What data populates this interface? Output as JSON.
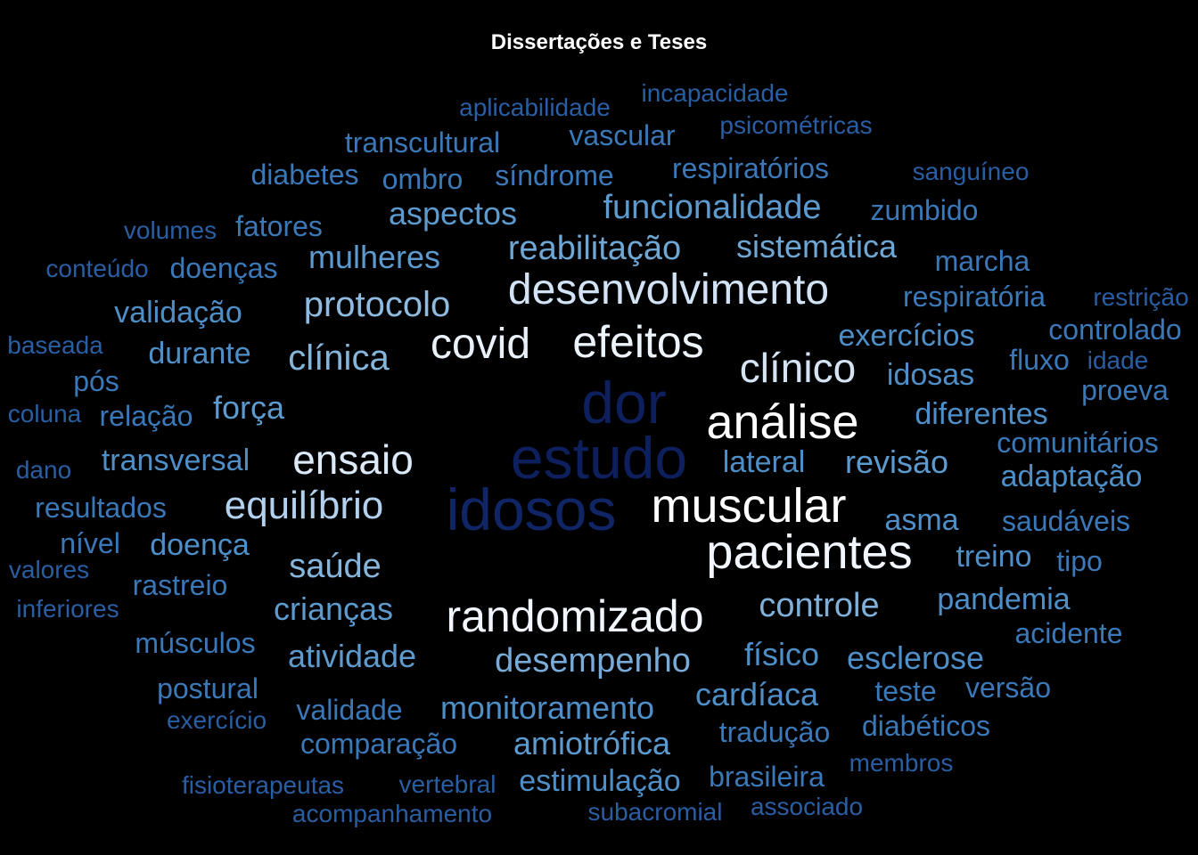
{
  "title": "Dissertações e Teses",
  "words": [
    {
      "text": "dor",
      "color": "#0e1f5e"
    },
    {
      "text": "estudo",
      "color": "#0e1f5e"
    },
    {
      "text": "idosos",
      "color": "#102566"
    },
    {
      "text": "análise",
      "color": "#ffffff"
    },
    {
      "text": "muscular",
      "color": "#ffffff"
    },
    {
      "text": "pacientes",
      "color": "#f1f6ff"
    },
    {
      "text": "randomizado",
      "color": "#f1f6ff"
    },
    {
      "text": "efeitos",
      "color": "#eef4fc"
    },
    {
      "text": "desenvolvimento",
      "color": "#d2e3f5"
    },
    {
      "text": "covid",
      "color": "#e8f0fa"
    },
    {
      "text": "clínico",
      "color": "#d4e4f5"
    },
    {
      "text": "ensaio",
      "color": "#dbe9f8"
    },
    {
      "text": "equilíbrio",
      "color": "#b3d1ee"
    },
    {
      "text": "protocolo",
      "color": "#8fbbe0"
    },
    {
      "text": "clínica",
      "color": "#86b5dc"
    },
    {
      "text": "saúde",
      "color": "#86b5dc"
    },
    {
      "text": "controle",
      "color": "#7eb0da"
    },
    {
      "text": "desempenho",
      "color": "#78abd7"
    },
    {
      "text": "reabilitação",
      "color": "#6ea6d4"
    },
    {
      "text": "sistemática",
      "color": "#6ea6d4"
    },
    {
      "text": "funcionalidade",
      "color": "#5d9ace"
    },
    {
      "text": "aspectos",
      "color": "#5d9ace"
    },
    {
      "text": "mulheres",
      "color": "#5d9ace"
    },
    {
      "text": "amiotrófica",
      "color": "#5d9ace"
    },
    {
      "text": "revisão",
      "color": "#5d9ace"
    },
    {
      "text": "força",
      "color": "#5d9ace"
    },
    {
      "text": "crianças",
      "color": "#5d9ace"
    },
    {
      "text": "atividade",
      "color": "#5d9ace"
    },
    {
      "text": "monitoramento",
      "color": "#4f8fc8"
    },
    {
      "text": "cardíaca",
      "color": "#4f8fc8"
    },
    {
      "text": "físico",
      "color": "#4f8fc8"
    },
    {
      "text": "esclerose",
      "color": "#4f8fc8"
    },
    {
      "text": "exercícios",
      "color": "#4f8fc8"
    },
    {
      "text": "diferentes",
      "color": "#4f8fc8"
    },
    {
      "text": "lateral",
      "color": "#4f8fc8"
    },
    {
      "text": "adaptação",
      "color": "#4f8fc8"
    },
    {
      "text": "pandemia",
      "color": "#4f8fc8"
    },
    {
      "text": "validação",
      "color": "#4f8fc8"
    },
    {
      "text": "durante",
      "color": "#4f8fc8"
    },
    {
      "text": "idosas",
      "color": "#4f8fc8"
    },
    {
      "text": "asma",
      "color": "#4f8fc8"
    },
    {
      "text": "treino",
      "color": "#4f8fc8"
    },
    {
      "text": "transversal",
      "color": "#4f8fc8"
    },
    {
      "text": "doença",
      "color": "#4f8fc8"
    },
    {
      "text": "estimulação",
      "color": "#4f8fc8"
    },
    {
      "text": "transcultural",
      "color": "#3a78b8"
    },
    {
      "text": "vascular",
      "color": "#3a78b8"
    },
    {
      "text": "síndrome",
      "color": "#3a78b8"
    },
    {
      "text": "respiratórios",
      "color": "#3a78b8"
    },
    {
      "text": "diabetes",
      "color": "#3a78b8"
    },
    {
      "text": "ombro",
      "color": "#3a78b8"
    },
    {
      "text": "zumbido",
      "color": "#3a78b8"
    },
    {
      "text": "fatores",
      "color": "#3a78b8"
    },
    {
      "text": "marcha",
      "color": "#3a78b8"
    },
    {
      "text": "doenças",
      "color": "#3a78b8"
    },
    {
      "text": "respiratória",
      "color": "#3a78b8"
    },
    {
      "text": "controlado",
      "color": "#3a78b8"
    },
    {
      "text": "fluxo",
      "color": "#3a78b8"
    },
    {
      "text": "pós",
      "color": "#3a78b8"
    },
    {
      "text": "proeva",
      "color": "#3a78b8"
    },
    {
      "text": "relação",
      "color": "#3a78b8"
    },
    {
      "text": "comunitários",
      "color": "#3a78b8"
    },
    {
      "text": "resultados",
      "color": "#3a78b8"
    },
    {
      "text": "saudáveis",
      "color": "#3a78b8"
    },
    {
      "text": "nível",
      "color": "#3a78b8"
    },
    {
      "text": "tipo",
      "color": "#3a78b8"
    },
    {
      "text": "rastreio",
      "color": "#3a78b8"
    },
    {
      "text": "acidente",
      "color": "#3a78b8"
    },
    {
      "text": "músculos",
      "color": "#3a78b8"
    },
    {
      "text": "postural",
      "color": "#3a78b8"
    },
    {
      "text": "teste",
      "color": "#3a78b8"
    },
    {
      "text": "versão",
      "color": "#3a78b8"
    },
    {
      "text": "validade",
      "color": "#3a78b8"
    },
    {
      "text": "comparação",
      "color": "#3a78b8"
    },
    {
      "text": "tradução",
      "color": "#3a78b8"
    },
    {
      "text": "diabéticos",
      "color": "#3a78b8"
    },
    {
      "text": "brasileira",
      "color": "#3a78b8"
    },
    {
      "text": "aplicabilidade",
      "color": "#2a5ea3"
    },
    {
      "text": "incapacidade",
      "color": "#2a5ea3"
    },
    {
      "text": "psicométricas",
      "color": "#2a5ea3"
    },
    {
      "text": "sanguíneo",
      "color": "#2a5ea3"
    },
    {
      "text": "volumes",
      "color": "#2a5ea3"
    },
    {
      "text": "conteúdo",
      "color": "#2a5ea3"
    },
    {
      "text": "restrição",
      "color": "#2a5ea3"
    },
    {
      "text": "baseada",
      "color": "#2a5ea3"
    },
    {
      "text": "idade",
      "color": "#2a5ea3"
    },
    {
      "text": "coluna",
      "color": "#2a5ea3"
    },
    {
      "text": "dano",
      "color": "#2a5ea3"
    },
    {
      "text": "valores",
      "color": "#2a5ea3"
    },
    {
      "text": "inferiores",
      "color": "#2a5ea3"
    },
    {
      "text": "exercício",
      "color": "#2a5ea3"
    },
    {
      "text": "membros",
      "color": "#2a5ea3"
    },
    {
      "text": "fisioterapeutas",
      "color": "#2a5ea3"
    },
    {
      "text": "vertebral",
      "color": "#2a5ea3"
    },
    {
      "text": "acompanhamento",
      "color": "#2a5ea3"
    },
    {
      "text": "subacromial",
      "color": "#2a5ea3"
    },
    {
      "text": "associado",
      "color": "#2a5ea3"
    }
  ]
}
